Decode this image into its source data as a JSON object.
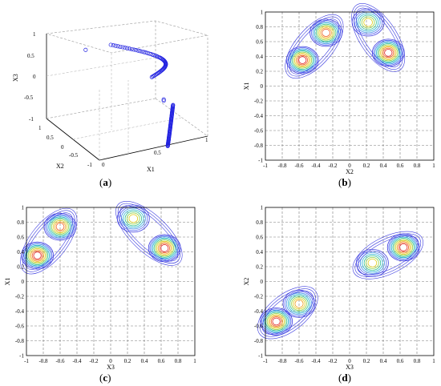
{
  "chart_data": [
    {
      "type": "scatter",
      "panel": "(a)",
      "caption_letter": "a",
      "projection": "3d",
      "xlabel": "X1",
      "ylabel": "X2",
      "zlabel": "X3",
      "xlim": [
        -1,
        1
      ],
      "ylim": [
        -1,
        1
      ],
      "zlim": [
        -1,
        1
      ],
      "xticks": [
        "-1",
        "0",
        "0.5",
        "1"
      ],
      "yticks": [
        "-1",
        "-0.5",
        "0",
        "0.5",
        "1"
      ],
      "zticks": [
        "-1",
        "-0.5",
        "0",
        "0.5",
        "1"
      ],
      "grid": true,
      "marker": "circle",
      "color": "#2020e0",
      "series": [
        {
          "x_range": [
            0.15,
            0.75
          ],
          "y_range": [
            -0.65,
            0.9
          ],
          "z_range": [
            0.55,
            0.85
          ],
          "description_points": 60
        },
        {
          "x_range": [
            0.3,
            0.8
          ],
          "y_range": [
            -0.9,
            -0.1
          ],
          "z_range": [
            -0.9,
            -0.1
          ],
          "description_points": 60
        }
      ]
    },
    {
      "type": "contour",
      "panel": "(b)",
      "caption_letter": "b",
      "xlabel": "X2",
      "ylabel": "X1",
      "xlim": [
        -1,
        1
      ],
      "ylim": [
        -1,
        1
      ],
      "xticks": [
        "-1",
        "-0.8",
        "-0.6",
        "-0.4",
        "-0.2",
        "0",
        "0.2",
        "0.4",
        "0.6",
        "0.8",
        "1"
      ],
      "yticks": [
        "1",
        "0.8",
        "0.6",
        "0.4",
        "0.2",
        "0",
        "-0.2",
        "-0.4",
        "-0.6",
        "-0.8",
        "-1"
      ],
      "grid": true,
      "peaks": [
        {
          "x": -0.56,
          "y": 0.35,
          "intensity": 1.0
        },
        {
          "x": -0.28,
          "y": 0.72,
          "intensity": 0.9
        },
        {
          "x": 0.22,
          "y": 0.86,
          "intensity": 0.55
        },
        {
          "x": 0.46,
          "y": 0.45,
          "intensity": 1.0
        }
      ]
    },
    {
      "type": "contour",
      "panel": "(c)",
      "caption_letter": "c",
      "xlabel": "X3",
      "ylabel": "X1",
      "xlim": [
        -1,
        1
      ],
      "ylim": [
        -1,
        1
      ],
      "xticks": [
        "-1",
        "-0.8",
        "-0.6",
        "-0.4",
        "-0.2",
        "0",
        "0.2",
        "0.4",
        "0.6",
        "0.8",
        "1"
      ],
      "yticks": [
        "1",
        "0.8",
        "0.6",
        "0.4",
        "0.2",
        "0",
        "-0.2",
        "-0.4",
        "-0.6",
        "-0.8",
        "-1"
      ],
      "grid": true,
      "peaks": [
        {
          "x": -0.87,
          "y": 0.35,
          "intensity": 1.0
        },
        {
          "x": -0.6,
          "y": 0.74,
          "intensity": 0.9
        },
        {
          "x": 0.27,
          "y": 0.85,
          "intensity": 0.5
        },
        {
          "x": 0.64,
          "y": 0.45,
          "intensity": 1.0
        }
      ]
    },
    {
      "type": "contour",
      "panel": "(d)",
      "caption_letter": "d",
      "xlabel": "X3",
      "ylabel": "X2",
      "xlim": [
        -1,
        1
      ],
      "ylim": [
        -1,
        1
      ],
      "xticks": [
        "-1",
        "-0.8",
        "-0.6",
        "-0.4",
        "-0.2",
        "0",
        "0.2",
        "0.4",
        "0.6",
        "0.8",
        "1"
      ],
      "yticks": [
        "1",
        "0.8",
        "0.6",
        "0.4",
        "0.2",
        "0",
        "-0.2",
        "-0.4",
        "-0.6",
        "-0.8",
        "-1"
      ],
      "grid": true,
      "peaks": [
        {
          "x": -0.87,
          "y": -0.54,
          "intensity": 1.0
        },
        {
          "x": -0.6,
          "y": -0.3,
          "intensity": 0.7
        },
        {
          "x": 0.27,
          "y": 0.25,
          "intensity": 0.45
        },
        {
          "x": 0.64,
          "y": 0.46,
          "intensity": 1.0
        }
      ]
    }
  ],
  "captions": [
    "(a)",
    "(b)",
    "(c)",
    "(d)"
  ],
  "colors": {
    "scatter": "#2020e0",
    "contour_levels": [
      "#3a3adf",
      "#4f5ff0",
      "#3f8fe8",
      "#20b0d0",
      "#2fc08f",
      "#8fd040",
      "#e0d020",
      "#f0a020",
      "#f06020",
      "#e02020"
    ]
  }
}
